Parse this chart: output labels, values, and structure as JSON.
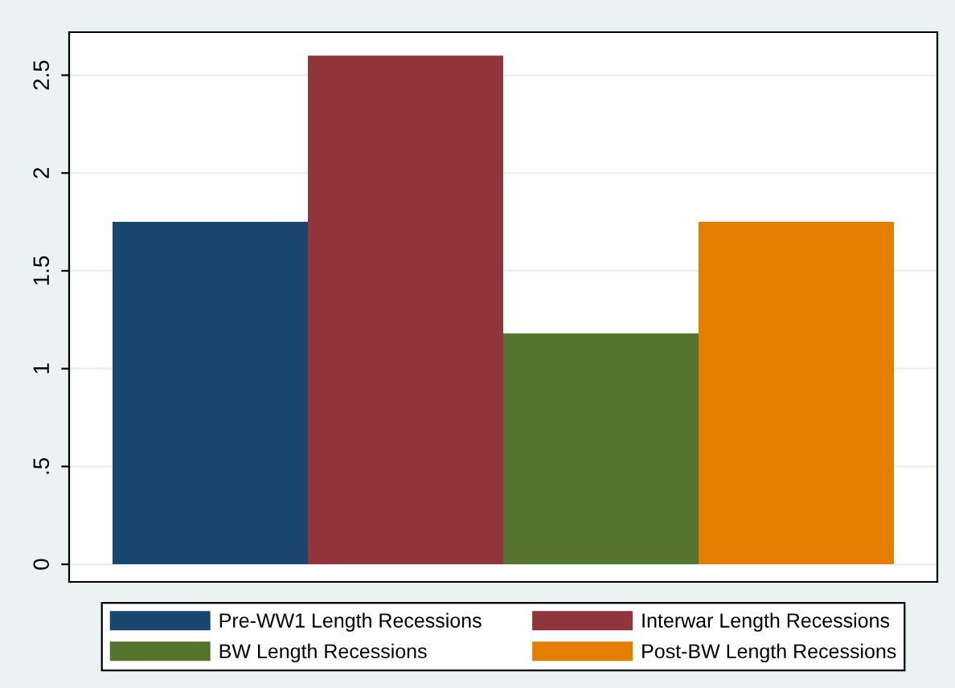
{
  "chart_data": {
    "type": "bar",
    "categories": [
      null
    ],
    "series": [
      {
        "name": "Pre-WW1 Length Recessions",
        "color": "#1a476f",
        "values": [
          1.75
        ]
      },
      {
        "name": "Interwar Length Recessions",
        "color": "#90353b",
        "values": [
          2.6
        ]
      },
      {
        "name": "BW Length Recessions",
        "color": "#55752f",
        "values": [
          1.18
        ]
      },
      {
        "name": "Post-BW Length Recessions",
        "color": "#e37e00",
        "values": [
          1.75
        ]
      }
    ],
    "ylim": [
      -0.09,
      2.72
    ],
    "yticks": [
      0,
      {
        "value": 0.5,
        "label": ".5"
      },
      1,
      1.5,
      2,
      2.5
    ],
    "grid": "y",
    "legend": "bottom",
    "tick_labels": "y"
  }
}
